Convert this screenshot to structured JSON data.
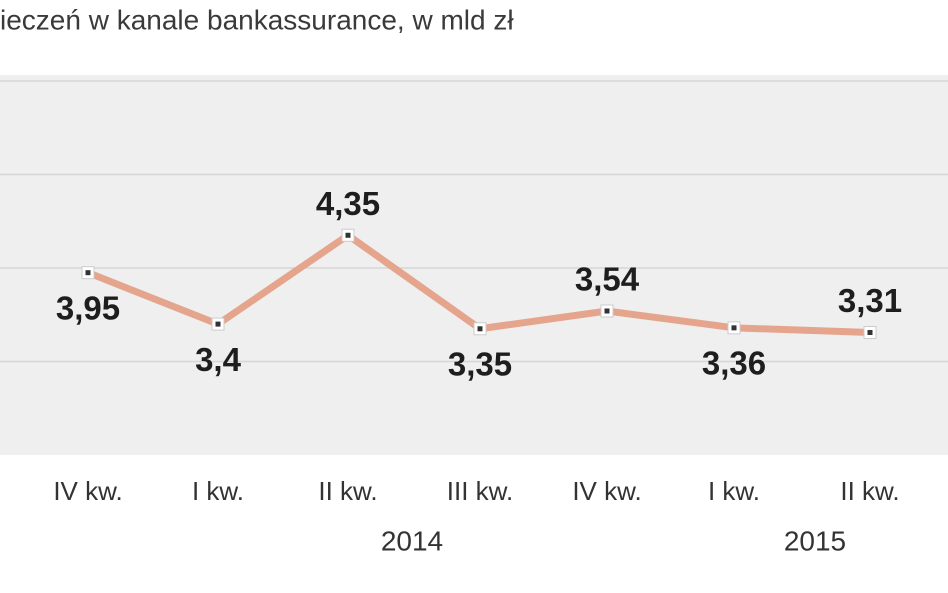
{
  "chart_data": {
    "type": "line",
    "title": "ieczeń w kanale bankassurance, w mld zł",
    "categories": [
      "IV kw.",
      "I kw.",
      "II kw.",
      "III kw.",
      "IV kw.",
      "I kw.",
      "II kw."
    ],
    "year_labels": [
      "2014",
      "2015"
    ],
    "values": [
      3.95,
      3.4,
      4.35,
      3.35,
      3.54,
      3.36,
      3.31
    ],
    "value_labels": [
      "3,95",
      "3,4",
      "4,35",
      "3,35",
      "3,54",
      "3,36",
      "3,31"
    ],
    "color": "#e5a58d",
    "ylim": [
      2,
      6
    ],
    "yticks": [
      3,
      4,
      5,
      6
    ],
    "grid": true
  }
}
